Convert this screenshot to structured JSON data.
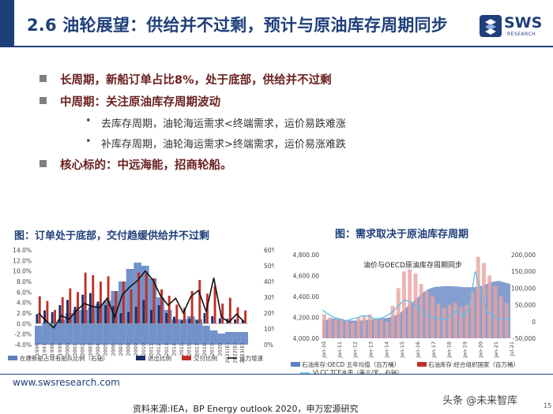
{
  "title": "2.6 油轮展望：供给并不过剩，预计与原油库存周期同步",
  "logo": {
    "text": "SWS",
    "sub": "RESEARCH"
  },
  "bullets": [
    {
      "level": 1,
      "text": "长周期，新船订单占比8%，处于底部，供给并不过剩"
    },
    {
      "level": 1,
      "text": "中周期：关注原油库存周期波动"
    },
    {
      "level": 2,
      "text": "去库存周期，油轮海运需求<终端需求，运价易跌难涨"
    },
    {
      "level": 2,
      "text": "补库存周期，油轮海运需求>终端需求，运价易涨难跌"
    },
    {
      "level": 1,
      "text": "核心标的：中远海能，招商轮船。"
    }
  ],
  "chart_data": [
    {
      "type": "bar",
      "title": "图：订单处于底部，交付趋缓供给并不过剩",
      "categories": [
        "1996",
        "1997",
        "1998",
        "1999",
        "2000",
        "2001",
        "2002",
        "2003",
        "2004",
        "2005",
        "2006",
        "2007",
        "2008",
        "2009",
        "2010",
        "2011",
        "2012",
        "2013",
        "2014",
        "2015",
        "2016",
        "2017",
        "2018",
        "2019",
        "2020",
        "2021(E)",
        "2022(E)",
        "2023(E)"
      ],
      "left_axis": {
        "ticks": [
          "14.0%",
          "12.0%",
          "10.0%",
          "8.0%",
          "6.0%",
          "4.0%",
          "2.0%",
          "0.0%",
          "-2.0%",
          "-4.0%"
        ],
        "range": [
          -4,
          14
        ]
      },
      "right_axis": {
        "ticks": [
          "60%",
          "50%",
          "40%",
          "30%",
          "20%",
          "10%",
          "0%"
        ],
        "range": [
          0,
          60
        ]
      },
      "series": [
        {
          "name": "在建新船占现有船队比例（右轴）",
          "axis": "right",
          "values": [
            12,
            14,
            14,
            16,
            20,
            22,
            22,
            24,
            26,
            28,
            34,
            40,
            48,
            52,
            50,
            42,
            30,
            22,
            16,
            16,
            18,
            16,
            12,
            9,
            7,
            8,
            8,
            8
          ]
        },
        {
          "name": "退出比例",
          "axis": "left",
          "values": [
            1.8,
            2.5,
            2.2,
            3.5,
            4.5,
            3.2,
            5.5,
            5.8,
            4.2,
            3.5,
            3.3,
            2.0,
            2.2,
            3.2,
            4.5,
            2.6,
            3.5,
            2.0,
            1.3,
            0.6,
            0.9,
            0.6,
            2.0,
            1.4,
            1.0,
            0.9,
            0.8,
            0.6
          ]
        },
        {
          "name": "交付比例",
          "axis": "left",
          "values": [
            5.2,
            4.3,
            2.6,
            5.0,
            6.7,
            6.0,
            9.7,
            9.2,
            8.0,
            9.0,
            6.2,
            8.0,
            6.5,
            9.7,
            9.5,
            8.6,
            6.5,
            5.3,
            3.6,
            3.0,
            6.2,
            8.3,
            5.7,
            7.2,
            3.8,
            4.9,
            3.1,
            2.5
          ]
        },
        {
          "name": "运力增速",
          "axis": "left",
          "values": [
            2.0,
            0.5,
            -0.8,
            1.5,
            0.8,
            2.5,
            3.8,
            3.3,
            3.0,
            4.8,
            1.3,
            5.5,
            7.0,
            8.2,
            10.0,
            8.3,
            5.3,
            3.5,
            4.8,
            2.0,
            5.2,
            6.3,
            2.3,
            8.7,
            1.2,
            0.3,
            1.8,
            0.3
          ]
        }
      ]
    },
    {
      "type": "line",
      "title": "图：需求取决于原油库存周期",
      "annotation": "油价与OECD原油库存周期同步",
      "x_ticks": [
        "Jan-10",
        "Jan-11",
        "Jan-12",
        "Jan-13",
        "Jan-14",
        "Jan-15",
        "Jan-16",
        "Jan-17",
        "Jan-18",
        "Jan-19",
        "Jan-20",
        "Jan-21",
        "Jul-21"
      ],
      "left_axis": {
        "ticks": [
          "4,800.00",
          "4,600.00",
          "4,400.00",
          "4,200.00",
          "4,000.00"
        ],
        "range": [
          4000,
          4800
        ]
      },
      "right_axis": {
        "ticks": [
          "200,000",
          "150,000",
          "100,000",
          "50,000",
          "0",
          "-50,000"
        ],
        "range": [
          -50000,
          200000
        ]
      },
      "series": [
        {
          "name": "石油库存:OECD 五年均值（百万桶）",
          "axis": "left",
          "type": "area",
          "values": [
            4170,
            4180,
            4190,
            4180,
            4175,
            4170,
            4168,
            4172,
            4178,
            4185,
            4190,
            4195,
            4210,
            4230,
            4280,
            4330,
            4380,
            4430,
            4470,
            4490,
            4495,
            4500,
            4498,
            4495,
            4490,
            4488,
            4490,
            4500,
            4520,
            4540,
            4550,
            4535,
            4520
          ]
        },
        {
          "name": "石油库存:经合组织国家（百万桶）",
          "axis": "left",
          "type": "bar",
          "values": [
            4230,
            4200,
            4180,
            4190,
            4170,
            4150,
            4200,
            4210,
            4230,
            4190,
            4180,
            4160,
            4310,
            4480,
            4640,
            4660,
            4620,
            4520,
            4450,
            4400,
            4330,
            4290,
            4320,
            4340,
            4300,
            4320,
            4450,
            4780,
            4720,
            4600,
            4500,
            4400,
            4340
          ]
        },
        {
          "name": "VLCC TCE水平（美元/天，右轴）",
          "axis": "right",
          "type": "line",
          "values": [
            35000,
            22000,
            12000,
            8000,
            2000,
            8000,
            12000,
            18000,
            15000,
            8000,
            10000,
            18000,
            30000,
            48000,
            65000,
            58000,
            45000,
            30000,
            18000,
            12000,
            8000,
            6000,
            20000,
            35000,
            15000,
            40000,
            150000,
            90000,
            30000,
            20000,
            8000,
            5000,
            10000
          ]
        }
      ],
      "legend": [
        "石油库存:OECD 五年均值（百万桶）",
        "石油库存:经合组织国家（百万桶）",
        "VLCC TCE水平（美元/天，右轴）"
      ]
    }
  ],
  "footer": {
    "url": "www.swsresearch.com",
    "source": "资料来源:IEA，BP Energy outlook 2020，申万宏源研究",
    "watermark": "头条 @未来智库",
    "page": "15"
  },
  "colors": {
    "brand": "#1f3f7a",
    "bar_blue": "#4a72b8",
    "bar_red": "#c0302a",
    "line_black": "#111111",
    "area_blue": "#5b7fbf",
    "bar_pink": "#e8a3a3",
    "line_cyan": "#5bc0e8"
  }
}
